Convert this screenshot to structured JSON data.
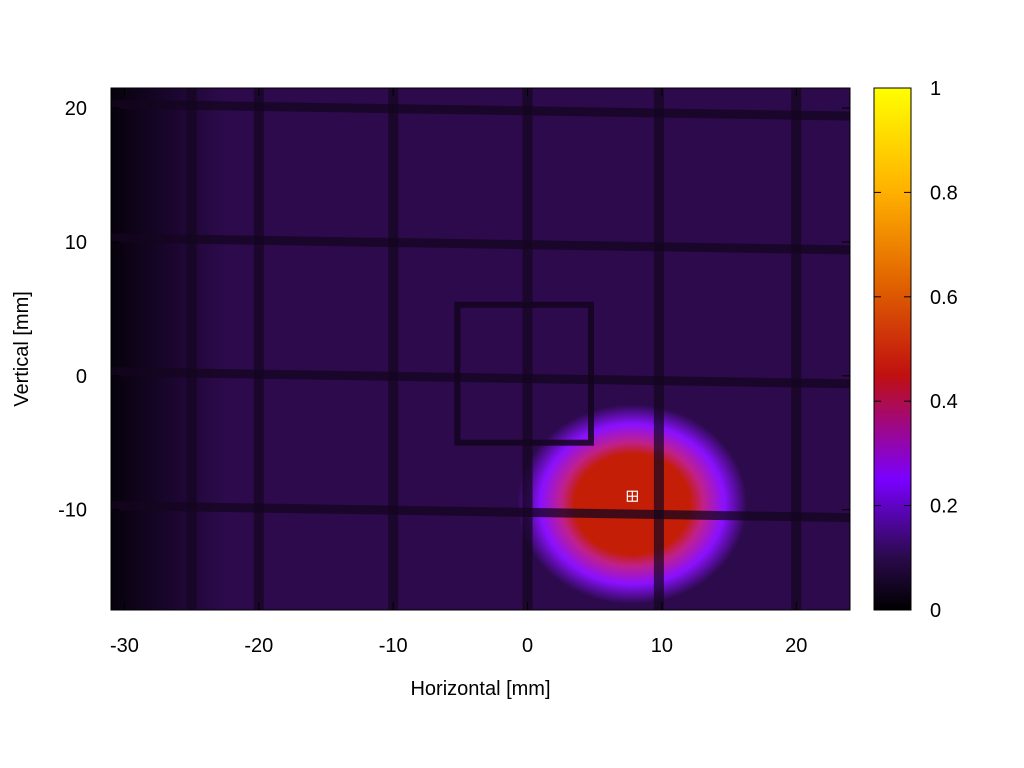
{
  "chart_data": {
    "type": "heatmap",
    "title": "",
    "xlabel": "Horizontal [mm]",
    "ylabel": "Vertical [mm]",
    "xlim": [
      -31,
      24
    ],
    "ylim": [
      -17.5,
      21.5
    ],
    "x_ticks": [
      -30,
      -20,
      -10,
      0,
      10,
      20
    ],
    "x_tick_labels": [
      "-30",
      "-20",
      "-10",
      "0",
      "10",
      "20"
    ],
    "y_ticks": [
      -10,
      0,
      10,
      20
    ],
    "y_tick_labels": [
      "-10",
      "0",
      "10",
      "20"
    ],
    "colorbar": {
      "range": [
        0,
        1
      ],
      "ticks": [
        0,
        0.2,
        0.4,
        0.6,
        0.8,
        1
      ],
      "tick_labels": [
        "0",
        "0.2",
        "0.4",
        "0.6",
        "0.8",
        "1"
      ],
      "colormap": [
        "#000000",
        "#2a0a4a",
        "#7a00ff",
        "#c01010",
        "#e06000",
        "#ffb000",
        "#ffff00"
      ]
    },
    "background_level": 0.08,
    "beam_spot": {
      "center_x": 7.8,
      "center_y": -9,
      "peak_level": 0.5
    },
    "marker": {
      "x": 7.8,
      "y": -9,
      "symbol": "crosshair-box"
    },
    "grid_lines": {
      "vertical_x": [
        -25,
        -20,
        -10,
        0,
        10,
        20
      ],
      "horizontal_y": [
        -10,
        0,
        10,
        20
      ]
    },
    "inner_square": {
      "x0": -5,
      "x1": 4.5,
      "y0": -5,
      "y1": 5
    }
  }
}
